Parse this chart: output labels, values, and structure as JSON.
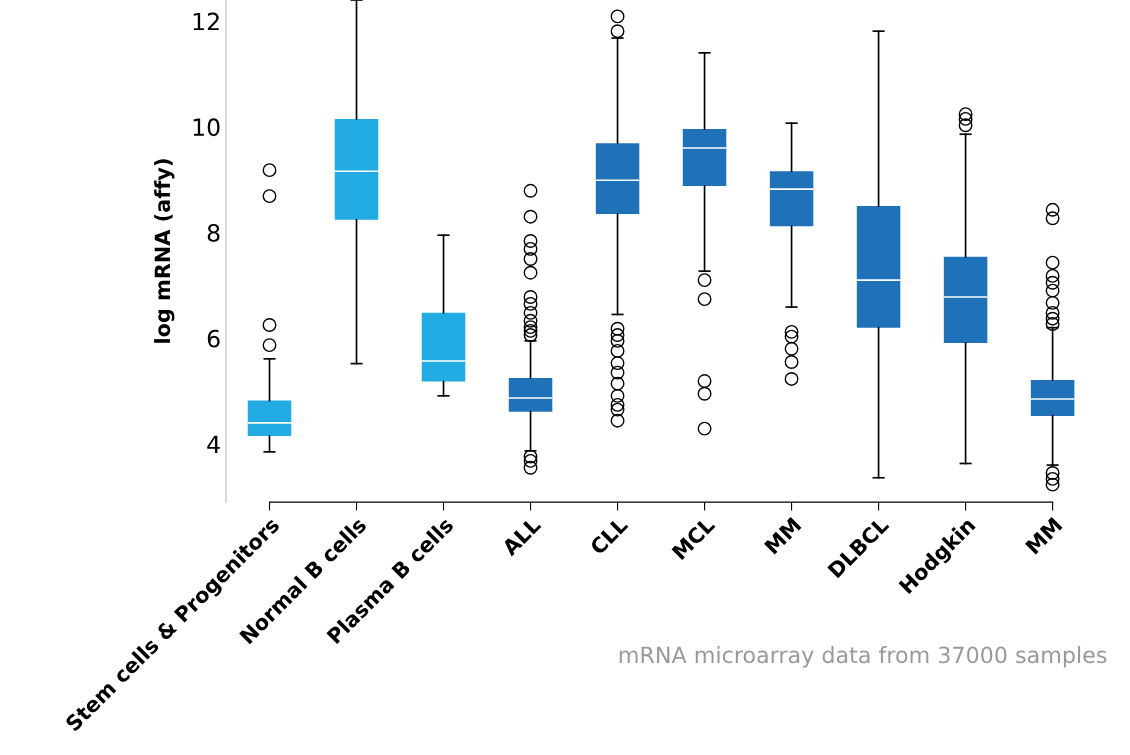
{
  "chart_data": {
    "type": "box",
    "ylabel": "log mRNA (affy)",
    "categories": [
      "Stem cells & Progenitors",
      "Normal B cells",
      "Plasma B cells",
      "ALL",
      "CLL",
      "MCL",
      "MM",
      "DLBCL",
      "Hodgkin",
      "MM"
    ],
    "colors": [
      "#22aae2",
      "#22aae2",
      "#22aae2",
      "#1f72b8",
      "#1f72b8",
      "#1f72b8",
      "#1f72b8",
      "#1f72b8",
      "#1f72b8",
      "#1f72b8"
    ],
    "boxes": [
      {
        "low": 3.85,
        "q1": 4.15,
        "median": 4.4,
        "q3": 4.82,
        "high": 5.61,
        "outliers": [
          9.18,
          8.69,
          6.25,
          5.87
        ]
      },
      {
        "low": 5.52,
        "q1": 8.24,
        "median": 9.16,
        "q3": 10.15,
        "high": 12.4
      },
      {
        "low": 4.91,
        "q1": 5.18,
        "median": 5.57,
        "q3": 6.48,
        "high": 7.95
      },
      {
        "low": 3.87,
        "q1": 4.61,
        "median": 4.87,
        "q3": 5.25,
        "high": 5.95,
        "outliers": [
          8.79,
          8.3,
          7.84,
          7.69,
          7.5,
          7.24,
          6.78,
          6.65,
          6.48,
          6.33,
          6.21,
          6.14,
          6.06,
          3.76,
          3.68,
          3.55
        ]
      },
      {
        "low": 6.45,
        "q1": 8.35,
        "median": 8.99,
        "q3": 9.69,
        "high": 11.68,
        "outliers": [
          12.09,
          11.81,
          6.18,
          6.06,
          5.95,
          5.76,
          5.53,
          5.35,
          5.14,
          4.91,
          4.74,
          4.65,
          4.44
        ]
      },
      {
        "low": 7.27,
        "q1": 8.88,
        "median": 9.6,
        "q3": 9.96,
        "high": 11.4,
        "outliers": [
          7.1,
          6.74,
          5.19,
          4.95,
          4.29
        ]
      },
      {
        "low": 6.59,
        "q1": 8.12,
        "median": 8.82,
        "q3": 9.16,
        "high": 10.07,
        "outliers": [
          6.12,
          6.03,
          5.8,
          5.55,
          5.23
        ]
      },
      {
        "low": 3.36,
        "q1": 6.2,
        "median": 7.1,
        "q3": 8.5,
        "high": 11.81
      },
      {
        "low": 3.63,
        "q1": 5.91,
        "median": 6.78,
        "q3": 7.54,
        "high": 9.86,
        "outliers": [
          10.24,
          10.15,
          10.03
        ]
      },
      {
        "low": 3.6,
        "q1": 4.53,
        "median": 4.85,
        "q3": 5.21,
        "high": 6.2,
        "outliers": [
          8.43,
          8.27,
          7.43,
          7.18,
          7.05,
          6.9,
          6.67,
          6.48,
          6.37,
          6.27,
          3.45,
          3.34,
          3.23
        ]
      }
    ],
    "ylim": [
      2.9,
      12.4
    ],
    "yticks": [
      4,
      6,
      8,
      10,
      12
    ],
    "grid": false,
    "legend": false,
    "annotations": [
      "mRNA microarray data from 37000 samples"
    ]
  }
}
